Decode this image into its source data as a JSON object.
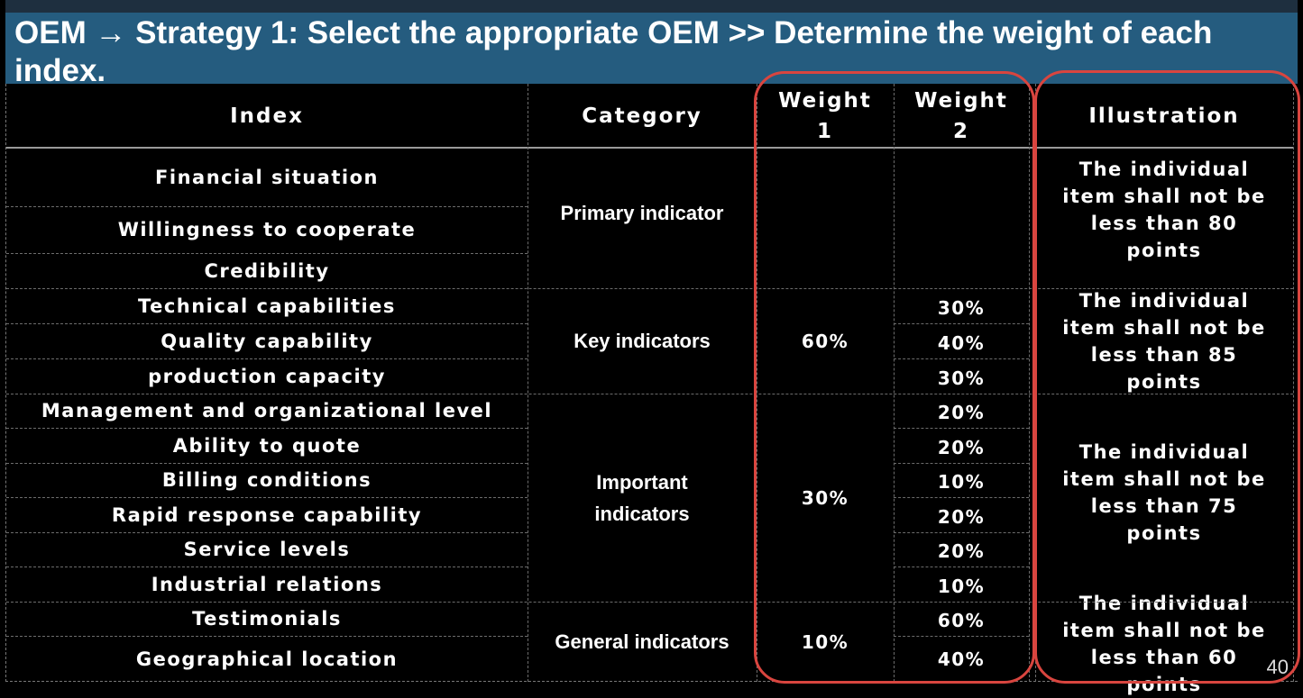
{
  "title": "OEM → Strategy 1:  Select the appropriate OEM >> Determine the weight of each index.",
  "headers": {
    "index": "Index",
    "category": "Category",
    "weight1": "Weight 1",
    "weight2": "Weight 2",
    "illustration": "Illustration"
  },
  "indexes": [
    "Financial situation",
    "Willingness to cooperate",
    "Credibility",
    "Technical capabilities",
    "Quality capability",
    "production capacity",
    "Management and organizational level",
    "Ability to quote",
    "Billing conditions",
    "Rapid response capability",
    "Service levels",
    "Industrial relations",
    "Testimonials",
    "Geographical location"
  ],
  "categories": [
    "Primary indicator",
    "Key indicators",
    "Important indicators",
    "General indicators"
  ],
  "weight1": [
    "",
    "60%",
    "30%",
    "10%"
  ],
  "weight2": [
    "",
    "",
    "",
    "30%",
    "40%",
    "30%",
    "20%",
    "20%",
    "10%",
    "20%",
    "20%",
    "10%",
    "60%",
    "40%"
  ],
  "illustrations": [
    "The individual item shall not be less than 80 points",
    "The individual item shall not be less than 85 points",
    "The individual item shall not be less than 75 points",
    "The individual item shall not be less than 60 points"
  ],
  "highlight_color": "#d9453f",
  "title_bar_color": "#255c7f",
  "page_number": "40"
}
